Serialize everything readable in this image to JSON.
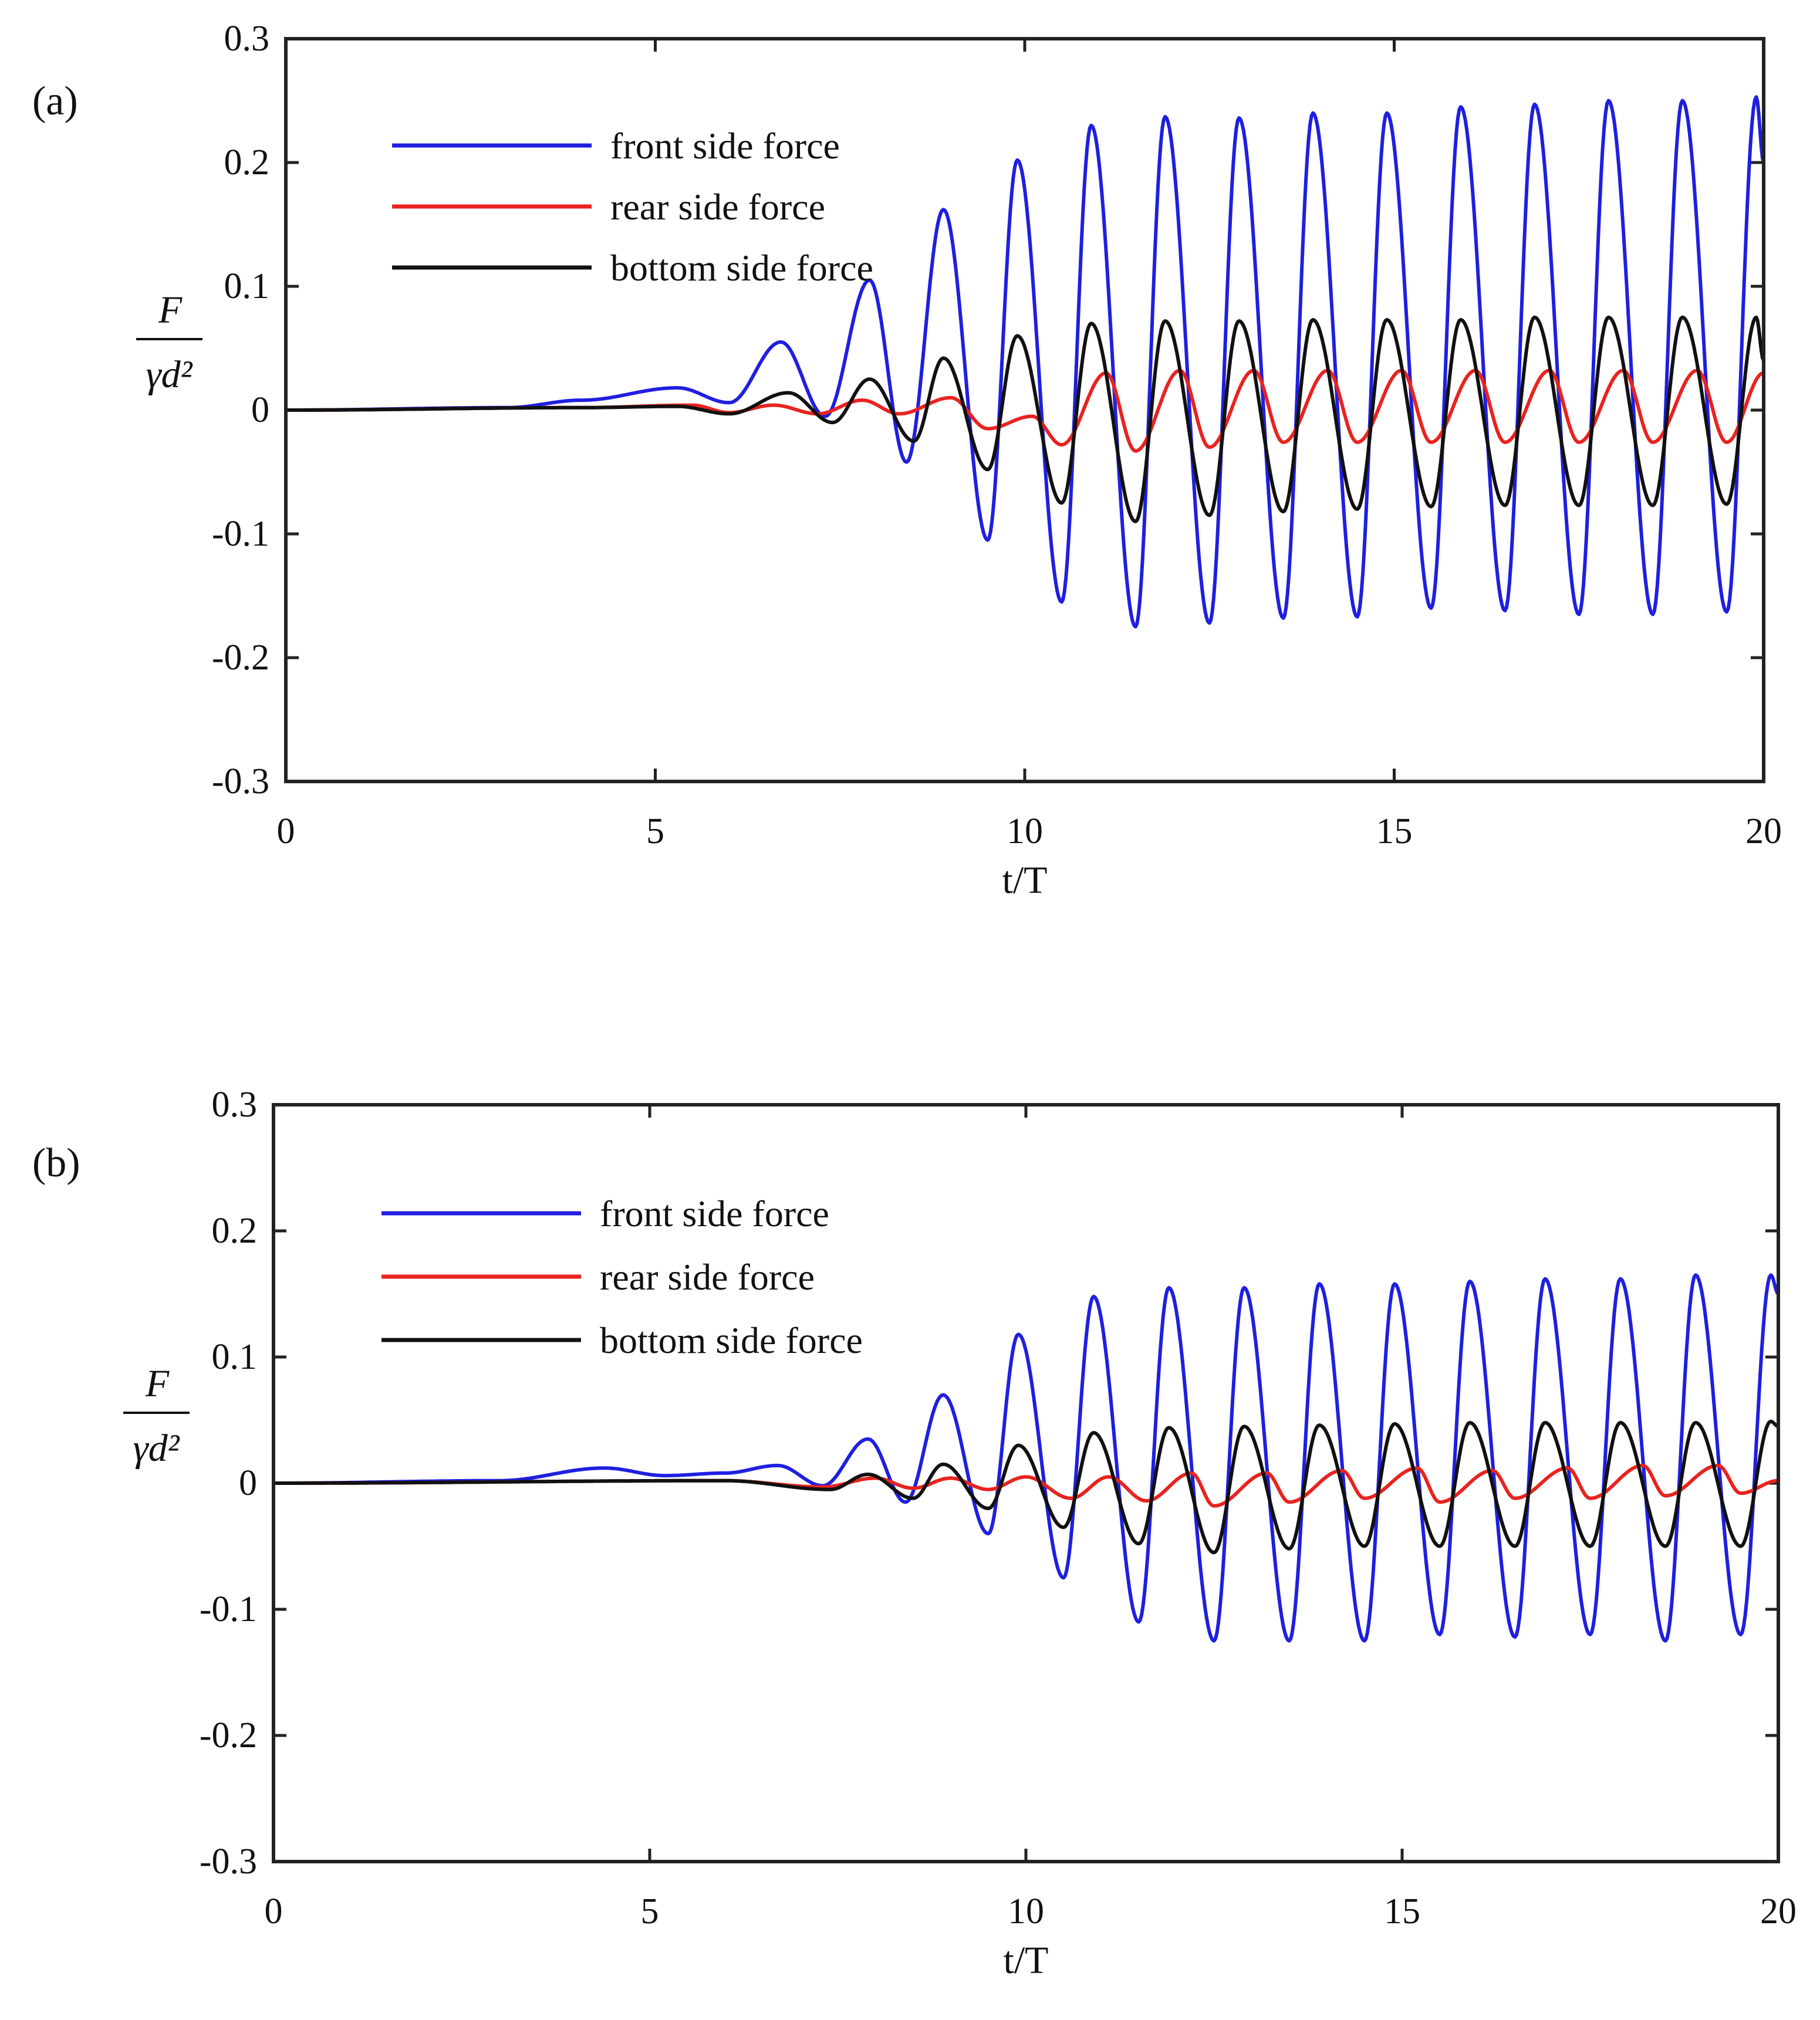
{
  "chart_data": [
    {
      "type": "line",
      "panel_label": "(a)",
      "xlabel": "t/T",
      "ylabel": {
        "numerator": "F",
        "denominator": "γd²"
      },
      "xlim": [
        0,
        20
      ],
      "ylim": [
        -0.3,
        0.3
      ],
      "xticks": [
        "0",
        "5",
        "10",
        "15",
        "20"
      ],
      "yticks": [
        "0.3",
        "0.2",
        "0.1",
        "0",
        "-0.1",
        "-0.2",
        "-0.3"
      ],
      "legend_position": "top-left",
      "period": 1,
      "series": [
        {
          "name": "front side force",
          "color": "#1f1fe0",
          "points": [
            [
              0,
              0
            ],
            [
              3,
              0.002
            ],
            [
              4,
              0.008
            ],
            [
              5.3,
              0.018
            ],
            [
              6,
              0.006
            ],
            [
              6.7,
              0.055
            ],
            [
              7.3,
              -0.005
            ],
            [
              7.9,
              0.105
            ],
            [
              8.4,
              -0.042
            ],
            [
              8.9,
              0.162
            ],
            [
              9.5,
              -0.105
            ],
            [
              9.9,
              0.202
            ],
            [
              10.5,
              -0.155
            ],
            [
              10.9,
              0.23
            ],
            [
              11.5,
              -0.175
            ],
            [
              11.9,
              0.237
            ],
            [
              12.5,
              -0.172
            ],
            [
              12.9,
              0.236
            ],
            [
              13.5,
              -0.168
            ],
            [
              13.9,
              0.24
            ],
            [
              14.5,
              -0.167
            ],
            [
              14.9,
              0.24
            ],
            [
              15.5,
              -0.16
            ],
            [
              15.9,
              0.245
            ],
            [
              16.5,
              -0.162
            ],
            [
              16.9,
              0.247
            ],
            [
              17.5,
              -0.165
            ],
            [
              17.9,
              0.25
            ],
            [
              18.5,
              -0.165
            ],
            [
              18.9,
              0.25
            ],
            [
              19.5,
              -0.163
            ],
            [
              19.9,
              0.253
            ],
            [
              20,
              0.2
            ]
          ]
        },
        {
          "name": "rear side force",
          "color": "#e8231f",
          "points": [
            [
              0,
              0
            ],
            [
              4,
              0.002
            ],
            [
              5.5,
              0.004
            ],
            [
              6,
              -0.002
            ],
            [
              6.6,
              0.004
            ],
            [
              7.2,
              -0.003
            ],
            [
              7.8,
              0.008
            ],
            [
              8.3,
              -0.003
            ],
            [
              9,
              0.01
            ],
            [
              9.5,
              -0.015
            ],
            [
              10.1,
              -0.005
            ],
            [
              10.5,
              -0.028
            ],
            [
              11.1,
              0.03
            ],
            [
              11.5,
              -0.033
            ],
            [
              12.1,
              0.032
            ],
            [
              12.5,
              -0.03
            ],
            [
              13.1,
              0.032
            ],
            [
              13.5,
              -0.026
            ],
            [
              14.1,
              0.032
            ],
            [
              14.5,
              -0.026
            ],
            [
              15.1,
              0.032
            ],
            [
              15.5,
              -0.026
            ],
            [
              16.1,
              0.032
            ],
            [
              16.5,
              -0.026
            ],
            [
              17.1,
              0.032
            ],
            [
              17.5,
              -0.026
            ],
            [
              18.1,
              0.032
            ],
            [
              18.5,
              -0.026
            ],
            [
              19.1,
              0.032
            ],
            [
              19.5,
              -0.026
            ],
            [
              20,
              0.03
            ]
          ]
        },
        {
          "name": "bottom side force",
          "color": "#111111",
          "points": [
            [
              0,
              0
            ],
            [
              4,
              0.002
            ],
            [
              5.3,
              0.003
            ],
            [
              6,
              -0.003
            ],
            [
              6.8,
              0.014
            ],
            [
              7.4,
              -0.01
            ],
            [
              7.9,
              0.025
            ],
            [
              8.5,
              -0.025
            ],
            [
              8.9,
              0.042
            ],
            [
              9.5,
              -0.048
            ],
            [
              9.9,
              0.06
            ],
            [
              10.5,
              -0.075
            ],
            [
              10.9,
              0.07
            ],
            [
              11.5,
              -0.09
            ],
            [
              11.9,
              0.072
            ],
            [
              12.5,
              -0.085
            ],
            [
              12.9,
              0.072
            ],
            [
              13.5,
              -0.082
            ],
            [
              13.9,
              0.073
            ],
            [
              14.5,
              -0.08
            ],
            [
              14.9,
              0.073
            ],
            [
              15.5,
              -0.078
            ],
            [
              15.9,
              0.073
            ],
            [
              16.5,
              -0.077
            ],
            [
              16.9,
              0.075
            ],
            [
              17.5,
              -0.077
            ],
            [
              17.9,
              0.075
            ],
            [
              18.5,
              -0.077
            ],
            [
              18.9,
              0.075
            ],
            [
              19.5,
              -0.076
            ],
            [
              19.9,
              0.075
            ],
            [
              20,
              0.04
            ]
          ]
        }
      ]
    },
    {
      "type": "line",
      "panel_label": "(b)",
      "xlabel": "t/T",
      "ylabel": {
        "numerator": "F",
        "denominator": "γd²"
      },
      "xlim": [
        0,
        20
      ],
      "ylim": [
        -0.3,
        0.3
      ],
      "xticks": [
        "0",
        "5",
        "10",
        "15",
        "20"
      ],
      "yticks": [
        "0.3",
        "0.2",
        "0.1",
        "0",
        "-0.1",
        "-0.2",
        "-0.3"
      ],
      "legend_position": "top-left",
      "period": 1,
      "series": [
        {
          "name": "front side force",
          "color": "#1f1fe0",
          "points": [
            [
              0,
              0
            ],
            [
              3,
              0.002
            ],
            [
              4.4,
              0.012
            ],
            [
              5.2,
              0.006
            ],
            [
              6,
              0.008
            ],
            [
              6.7,
              0.014
            ],
            [
              7.3,
              -0.002
            ],
            [
              7.9,
              0.035
            ],
            [
              8.4,
              -0.015
            ],
            [
              8.9,
              0.07
            ],
            [
              9.5,
              -0.04
            ],
            [
              9.9,
              0.118
            ],
            [
              10.5,
              -0.075
            ],
            [
              10.9,
              0.148
            ],
            [
              11.5,
              -0.11
            ],
            [
              11.9,
              0.155
            ],
            [
              12.5,
              -0.125
            ],
            [
              12.9,
              0.155
            ],
            [
              13.5,
              -0.125
            ],
            [
              13.9,
              0.158
            ],
            [
              14.5,
              -0.125
            ],
            [
              14.9,
              0.158
            ],
            [
              15.5,
              -0.12
            ],
            [
              15.9,
              0.16
            ],
            [
              16.5,
              -0.122
            ],
            [
              16.9,
              0.162
            ],
            [
              17.5,
              -0.12
            ],
            [
              17.9,
              0.162
            ],
            [
              18.5,
              -0.125
            ],
            [
              18.9,
              0.165
            ],
            [
              19.5,
              -0.12
            ],
            [
              19.9,
              0.165
            ],
            [
              20,
              0.15
            ]
          ]
        },
        {
          "name": "rear side force",
          "color": "#e8231f",
          "points": [
            [
              0,
              0
            ],
            [
              6,
              0.002
            ],
            [
              7.3,
              -0.003
            ],
            [
              8,
              0.004
            ],
            [
              8.5,
              -0.004
            ],
            [
              9,
              0.004
            ],
            [
              9.5,
              -0.005
            ],
            [
              10,
              0.005
            ],
            [
              10.6,
              -0.012
            ],
            [
              11.1,
              0.005
            ],
            [
              11.6,
              -0.014
            ],
            [
              12.2,
              0.008
            ],
            [
              12.5,
              -0.018
            ],
            [
              13.2,
              0.008
            ],
            [
              13.5,
              -0.015
            ],
            [
              14.2,
              0.01
            ],
            [
              14.5,
              -0.012
            ],
            [
              15.2,
              0.012
            ],
            [
              15.5,
              -0.015
            ],
            [
              16.2,
              0.01
            ],
            [
              16.5,
              -0.012
            ],
            [
              17.2,
              0.012
            ],
            [
              17.5,
              -0.012
            ],
            [
              18.2,
              0.014
            ],
            [
              18.5,
              -0.01
            ],
            [
              19.2,
              0.014
            ],
            [
              19.5,
              -0.008
            ],
            [
              20,
              0.002
            ]
          ]
        },
        {
          "name": "bottom side force",
          "color": "#111111",
          "points": [
            [
              0,
              0
            ],
            [
              6,
              0.002
            ],
            [
              7.4,
              -0.005
            ],
            [
              7.9,
              0.007
            ],
            [
              8.5,
              -0.012
            ],
            [
              8.9,
              0.015
            ],
            [
              9.5,
              -0.02
            ],
            [
              9.9,
              0.03
            ],
            [
              10.5,
              -0.035
            ],
            [
              10.9,
              0.04
            ],
            [
              11.5,
              -0.048
            ],
            [
              11.9,
              0.044
            ],
            [
              12.5,
              -0.055
            ],
            [
              12.9,
              0.045
            ],
            [
              13.5,
              -0.052
            ],
            [
              13.9,
              0.046
            ],
            [
              14.5,
              -0.05
            ],
            [
              14.9,
              0.047
            ],
            [
              15.5,
              -0.05
            ],
            [
              15.9,
              0.048
            ],
            [
              16.5,
              -0.05
            ],
            [
              16.9,
              0.048
            ],
            [
              17.5,
              -0.05
            ],
            [
              17.9,
              0.048
            ],
            [
              18.5,
              -0.05
            ],
            [
              18.9,
              0.048
            ],
            [
              19.5,
              -0.05
            ],
            [
              19.9,
              0.049
            ],
            [
              20,
              0.045
            ]
          ]
        }
      ]
    }
  ]
}
